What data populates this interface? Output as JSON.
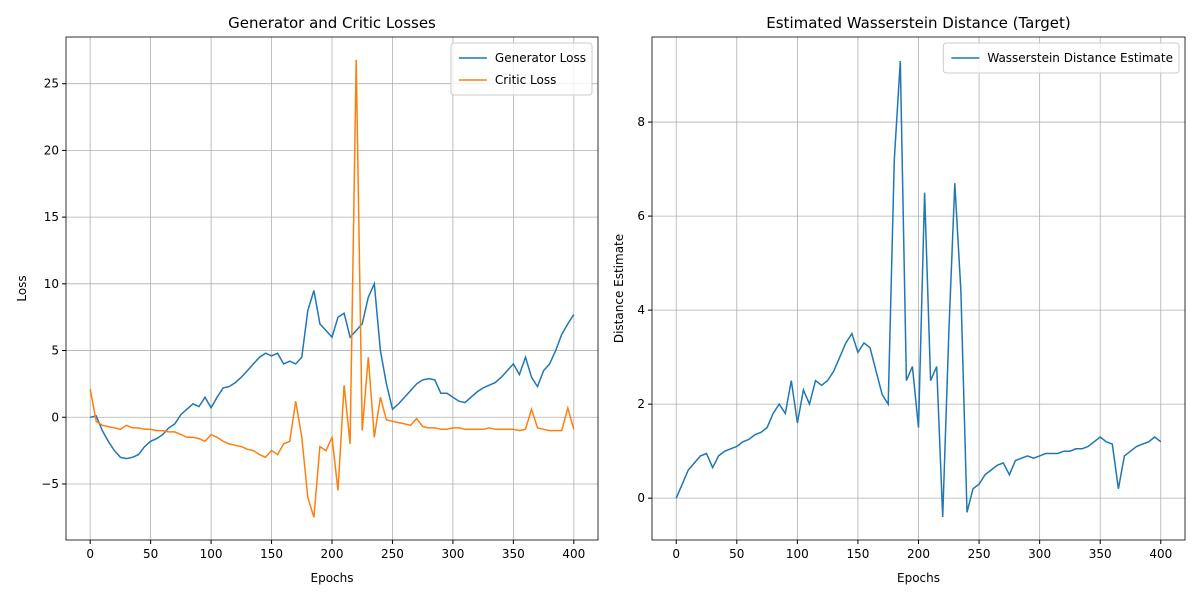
{
  "chart_data": [
    {
      "type": "line",
      "title": "Generator and Critic Losses",
      "x_label": "Epochs",
      "y_label": "Loss",
      "x": [
        0,
        5,
        10,
        15,
        20,
        25,
        30,
        35,
        40,
        45,
        50,
        55,
        60,
        65,
        70,
        75,
        80,
        85,
        90,
        95,
        100,
        105,
        110,
        115,
        120,
        125,
        130,
        135,
        140,
        145,
        150,
        155,
        160,
        165,
        170,
        175,
        180,
        185,
        190,
        195,
        200,
        205,
        210,
        215,
        220,
        225,
        230,
        235,
        240,
        245,
        250,
        255,
        260,
        265,
        270,
        275,
        280,
        285,
        290,
        295,
        300,
        305,
        310,
        315,
        320,
        325,
        330,
        335,
        340,
        345,
        350,
        355,
        360,
        365,
        370,
        375,
        380,
        385,
        390,
        395,
        400
      ],
      "series": [
        {
          "name": "Generator Loss",
          "color": "#1f77b4",
          "values": [
            0,
            0.1,
            -1,
            -1.8,
            -2.5,
            -3,
            -3.1,
            -3,
            -2.8,
            -2.2,
            -1.8,
            -1.6,
            -1.3,
            -0.8,
            -0.5,
            0.2,
            0.6,
            1,
            0.8,
            1.5,
            0.7,
            1.5,
            2.2,
            2.3,
            2.6,
            3,
            3.5,
            4,
            4.5,
            4.8,
            4.6,
            4.8,
            4,
            4.2,
            4,
            4.5,
            8,
            9.5,
            7,
            6.5,
            6,
            7.5,
            7.8,
            6,
            6.5,
            7,
            9,
            10,
            5,
            2.5,
            0.6,
            1,
            1.5,
            2,
            2.5,
            2.8,
            2.9,
            2.8,
            1.8,
            1.8,
            1.5,
            1.2,
            1.1,
            1.5,
            1.9,
            2.2,
            2.4,
            2.6,
            3,
            3.5,
            4,
            3.2,
            4.5,
            3,
            2.3,
            3.5,
            4,
            5,
            6.2,
            7,
            7.7
          ]
        },
        {
          "name": "Critic Loss",
          "color": "#ff7f0e",
          "values": [
            2.1,
            -0.3,
            -0.6,
            -0.7,
            -0.8,
            -0.9,
            -0.6,
            -0.8,
            -0.8,
            -0.9,
            -0.9,
            -1,
            -1,
            -1.1,
            -1.1,
            -1.3,
            -1.5,
            -1.5,
            -1.6,
            -1.8,
            -1.3,
            -1.5,
            -1.8,
            -2,
            -2.1,
            -2.2,
            -2.4,
            -2.5,
            -2.8,
            -3,
            -2.5,
            -2.8,
            -2,
            -1.8,
            1.2,
            -1.5,
            -6,
            -7.5,
            -2.2,
            -2.5,
            -1.5,
            -5.5,
            2.4,
            -2,
            26.8,
            -1,
            4.5,
            -1.5,
            1.5,
            -0.2,
            -0.3,
            -0.4,
            -0.5,
            -0.6,
            -0.1,
            -0.7,
            -0.8,
            -0.8,
            -0.9,
            -0.9,
            -0.8,
            -0.8,
            -0.9,
            -0.9,
            -0.9,
            -0.9,
            -0.8,
            -0.9,
            -0.9,
            -0.9,
            -0.9,
            -1,
            -0.9,
            0.6,
            -0.8,
            -0.9,
            -1,
            -1,
            -1,
            0.7,
            -0.9
          ]
        }
      ],
      "xlim": [
        -20,
        420
      ],
      "ylim": [
        -9.2,
        28.5
      ],
      "xticks": [
        0,
        50,
        100,
        150,
        200,
        250,
        300,
        350,
        400
      ],
      "yticks": [
        {
          "value": -5,
          "label": "−5"
        },
        0,
        5,
        10,
        15,
        20,
        25
      ],
      "grid": true,
      "legend": "upper right"
    },
    {
      "type": "line",
      "title": "Estimated Wasserstein Distance (Target)",
      "x_label": "Epochs",
      "y_label": "Distance Estimate",
      "x": [
        0,
        5,
        10,
        15,
        20,
        25,
        30,
        35,
        40,
        45,
        50,
        55,
        60,
        65,
        70,
        75,
        80,
        85,
        90,
        95,
        100,
        105,
        110,
        115,
        120,
        125,
        130,
        135,
        140,
        145,
        150,
        155,
        160,
        165,
        170,
        175,
        180,
        185,
        190,
        195,
        200,
        205,
        210,
        215,
        220,
        225,
        230,
        235,
        240,
        245,
        250,
        255,
        260,
        265,
        270,
        275,
        280,
        285,
        290,
        295,
        300,
        305,
        310,
        315,
        320,
        325,
        330,
        335,
        340,
        345,
        350,
        355,
        360,
        365,
        370,
        375,
        380,
        385,
        390,
        395,
        400
      ],
      "series": [
        {
          "name": "Wasserstein Distance Estimate",
          "color": "#1f77b4",
          "values": [
            0,
            0.3,
            0.6,
            0.75,
            0.9,
            0.95,
            0.65,
            0.9,
            1,
            1.05,
            1.1,
            1.2,
            1.25,
            1.35,
            1.4,
            1.5,
            1.8,
            2,
            1.8,
            2.5,
            1.6,
            2.3,
            2,
            2.5,
            2.4,
            2.5,
            2.7,
            3,
            3.3,
            3.5,
            3.1,
            3.3,
            3.2,
            2.7,
            2.2,
            2,
            7.2,
            9.3,
            2.5,
            2.8,
            1.5,
            6.5,
            2.5,
            2.8,
            -0.4,
            3.5,
            6.7,
            4.4,
            -0.3,
            0.2,
            0.3,
            0.5,
            0.6,
            0.7,
            0.75,
            0.5,
            0.8,
            0.85,
            0.9,
            0.85,
            0.9,
            0.95,
            0.95,
            0.95,
            1,
            1,
            1.05,
            1.05,
            1.1,
            1.2,
            1.3,
            1.2,
            1.15,
            0.2,
            0.9,
            1,
            1.1,
            1.15,
            1.2,
            1.3,
            1.2
          ]
        }
      ],
      "xlim": [
        -20,
        420
      ],
      "ylim": [
        -0.89,
        9.81
      ],
      "xticks": [
        0,
        50,
        100,
        150,
        200,
        250,
        300,
        350,
        400
      ],
      "yticks": [
        0,
        2,
        4,
        6,
        8
      ],
      "grid": true,
      "legend": "upper right"
    }
  ]
}
